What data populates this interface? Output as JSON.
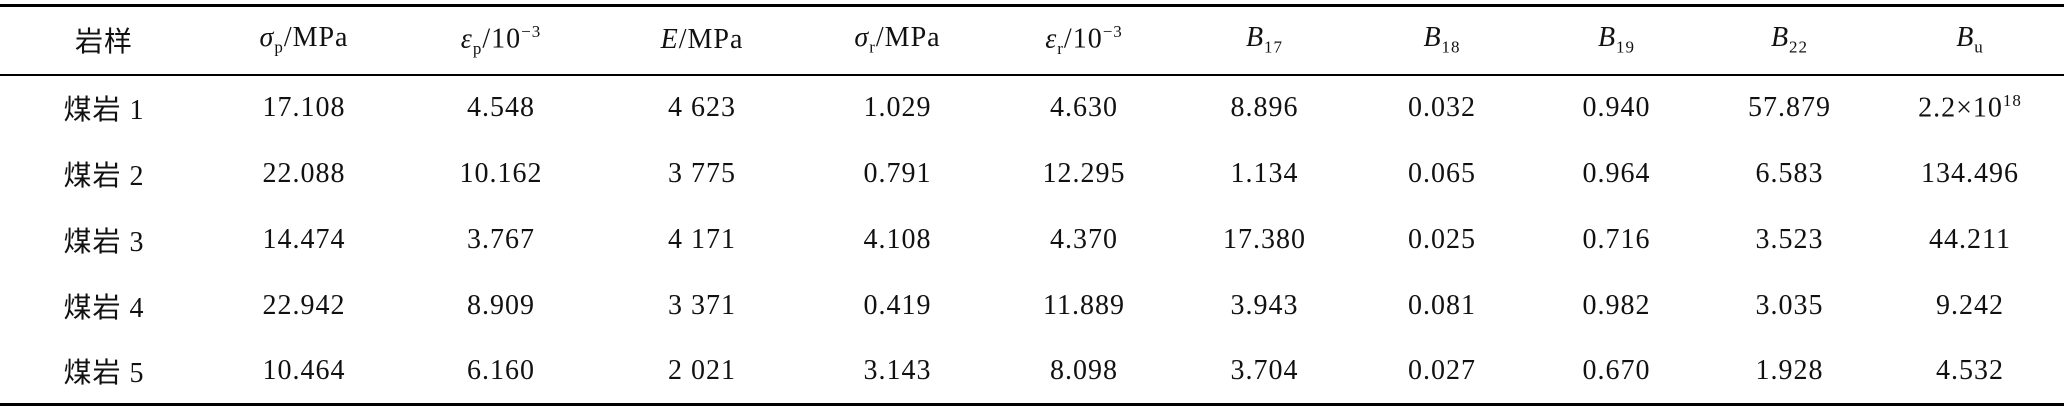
{
  "table": {
    "header": [
      "岩样",
      {
        "main": "σ",
        "sub": "p",
        "unit": "/MPa"
      },
      {
        "main": "ε",
        "sub": "p",
        "unit": "/10",
        "sup": "−3"
      },
      {
        "main": "E",
        "unit": "/MPa"
      },
      {
        "main": "σ",
        "sub": "r",
        "unit": "/MPa"
      },
      {
        "main": "ε",
        "sub": "r",
        "unit": "/10",
        "sup": "−3"
      },
      {
        "main": "B",
        "sub": "17"
      },
      {
        "main": "B",
        "sub": "18"
      },
      {
        "main": "B",
        "sub": "19"
      },
      {
        "main": "B",
        "sub": "22"
      },
      {
        "main": "B",
        "sub": "u"
      }
    ],
    "rows": [
      [
        "煤岩 1",
        "17.108",
        "4.548",
        "4 623",
        "1.029",
        "4.630",
        "8.896",
        "0.032",
        "0.940",
        "57.879",
        {
          "text": "2.2×10",
          "sup": "18"
        }
      ],
      [
        "煤岩 2",
        "22.088",
        "10.162",
        "3 775",
        "0.791",
        "12.295",
        "1.134",
        "0.065",
        "0.964",
        "6.583",
        "134.496"
      ],
      [
        "煤岩 3",
        "14.474",
        "3.767",
        "4 171",
        "4.108",
        "4.370",
        "17.380",
        "0.025",
        "0.716",
        "3.523",
        "44.211"
      ],
      [
        "煤岩 4",
        "22.942",
        "8.909",
        "3 371",
        "0.419",
        "11.889",
        "3.943",
        "0.081",
        "0.982",
        "3.035",
        "9.242"
      ],
      [
        "煤岩 5",
        "10.464",
        "6.160",
        "2 021",
        "3.143",
        "8.098",
        "3.704",
        "0.027",
        "0.670",
        "1.928",
        "4.532"
      ]
    ]
  }
}
